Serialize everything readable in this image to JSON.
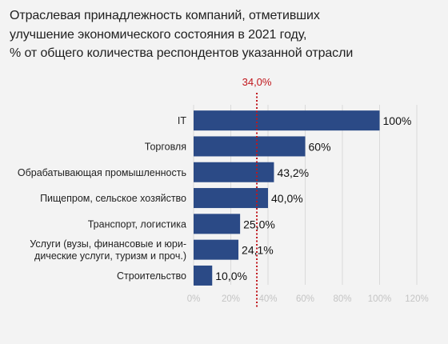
{
  "title_lines": [
    "Отраслевая принадлежность компаний, отметивших",
    "улучшение экономического состояния в 2021 году,",
    "% от общего количества респондентов указанной отрасли"
  ],
  "chart_data": {
    "type": "bar",
    "orientation": "horizontal",
    "title": "Отраслевая принадлежность компаний, отметивших улучшение экономического состояния в 2021 году, % от общего количества респондентов указанной отрасли",
    "categories": [
      [
        "IT"
      ],
      [
        "Торговля"
      ],
      [
        "Обрабатывающая промышленность"
      ],
      [
        "Пищепром, сельское хозяйство"
      ],
      [
        "Транспорт, логистика"
      ],
      [
        "Услуги (вузы, финансовые и юри-",
        "дические услуги, туризм и проч.)"
      ],
      [
        "Строительство"
      ]
    ],
    "values": [
      100,
      60,
      43.2,
      40.0,
      25.0,
      24.1,
      10.0
    ],
    "data_labels": [
      "100%",
      "60%",
      "43,2%",
      "40,0%",
      "25,0%",
      "24,1%",
      "10,0%"
    ],
    "x_ticks": [
      0,
      20,
      40,
      60,
      80,
      100,
      120
    ],
    "x_tick_labels": [
      "0%",
      "20%",
      "40%",
      "60%",
      "80%",
      "100%",
      "120%"
    ],
    "xlim": [
      0,
      120
    ],
    "grid": true,
    "bar_color": "#2b4a86",
    "reference_line": {
      "value": 34.0,
      "label": "34,0%",
      "color": "#c0161b",
      "style": "dotted"
    }
  }
}
